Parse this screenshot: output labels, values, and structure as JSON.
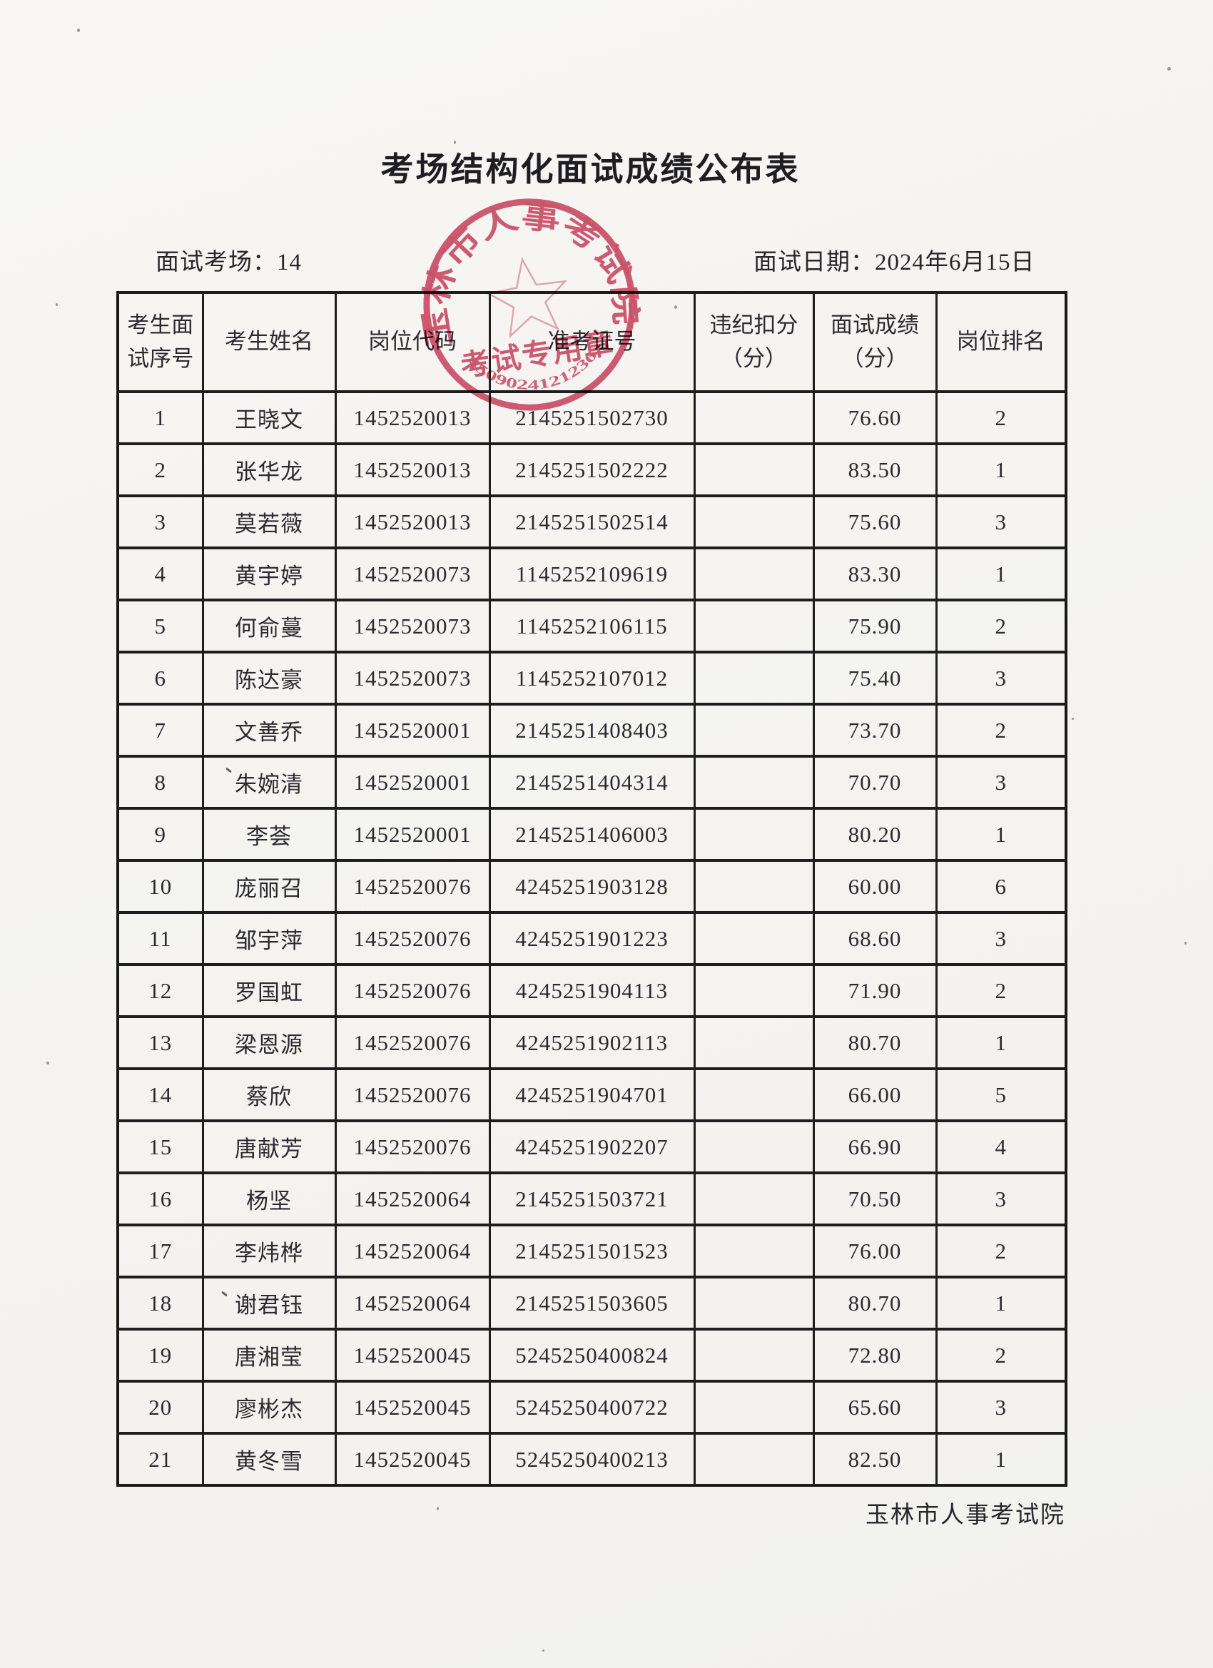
{
  "page": {
    "title": "考场结构化面试成绩公布表",
    "room_label": "面试考场：14",
    "date_label": "面试日期：2024年6月15日",
    "footer": "玉林市人事考试院"
  },
  "seal": {
    "ring_text": "玉林市人事考试院",
    "center_text": "考试专用章",
    "number": "4509024121236",
    "color": "#cf4763"
  },
  "colors": {
    "paper": "#f5f4f1",
    "ink": "#26262b",
    "table_border": "#1e1e1e",
    "seal_red": "#cf4763"
  },
  "table": {
    "headers": [
      "考生面\n试序号",
      "考生姓名",
      "岗位代码",
      "准考证号",
      "违纪扣分\n（分）",
      "面试成绩\n（分）",
      "岗位排名"
    ],
    "rows": [
      [
        "1",
        "王晓文",
        "1452520013",
        "2145251502730",
        "",
        "76.60",
        "2"
      ],
      [
        "2",
        "张华龙",
        "1452520013",
        "2145251502222",
        "",
        "83.50",
        "1"
      ],
      [
        "3",
        "莫若薇",
        "1452520013",
        "2145251502514",
        "",
        "75.60",
        "3"
      ],
      [
        "4",
        "黄宇婷",
        "1452520073",
        "1145252109619",
        "",
        "83.30",
        "1"
      ],
      [
        "5",
        "何俞蔓",
        "1452520073",
        "1145252106115",
        "",
        "75.90",
        "2"
      ],
      [
        "6",
        "陈达豪",
        "1452520073",
        "1145252107012",
        "",
        "75.40",
        "3"
      ],
      [
        "7",
        "文善乔",
        "1452520001",
        "2145251408403",
        "",
        "73.70",
        "2"
      ],
      [
        "8",
        "朱婉清",
        "1452520001",
        "2145251404314",
        "",
        "70.70",
        "3"
      ],
      [
        "9",
        "李荟",
        "1452520001",
        "2145251406003",
        "",
        "80.20",
        "1"
      ],
      [
        "10",
        "庞丽召",
        "1452520076",
        "4245251903128",
        "",
        "60.00",
        "6"
      ],
      [
        "11",
        "邹宇萍",
        "1452520076",
        "4245251901223",
        "",
        "68.60",
        "3"
      ],
      [
        "12",
        "罗国虹",
        "1452520076",
        "4245251904113",
        "",
        "71.90",
        "2"
      ],
      [
        "13",
        "梁恩源",
        "1452520076",
        "4245251902113",
        "",
        "80.70",
        "1"
      ],
      [
        "14",
        "蔡欣",
        "1452520076",
        "4245251904701",
        "",
        "66.00",
        "5"
      ],
      [
        "15",
        "唐献芳",
        "1452520076",
        "4245251902207",
        "",
        "66.90",
        "4"
      ],
      [
        "16",
        "杨坚",
        "1452520064",
        "2145251503721",
        "",
        "70.50",
        "3"
      ],
      [
        "17",
        "李炜桦",
        "1452520064",
        "2145251501523",
        "",
        "76.00",
        "2"
      ],
      [
        "18",
        "谢君钰",
        "1452520064",
        "2145251503605",
        "",
        "80.70",
        "1"
      ],
      [
        "19",
        "唐湘莹",
        "1452520045",
        "5245250400824",
        "",
        "72.80",
        "2"
      ],
      [
        "20",
        "廖彬杰",
        "1452520045",
        "5245250400722",
        "",
        "65.60",
        "3"
      ],
      [
        "21",
        "黄冬雪",
        "1452520045",
        "5245250400213",
        "",
        "82.50",
        "1"
      ]
    ]
  }
}
